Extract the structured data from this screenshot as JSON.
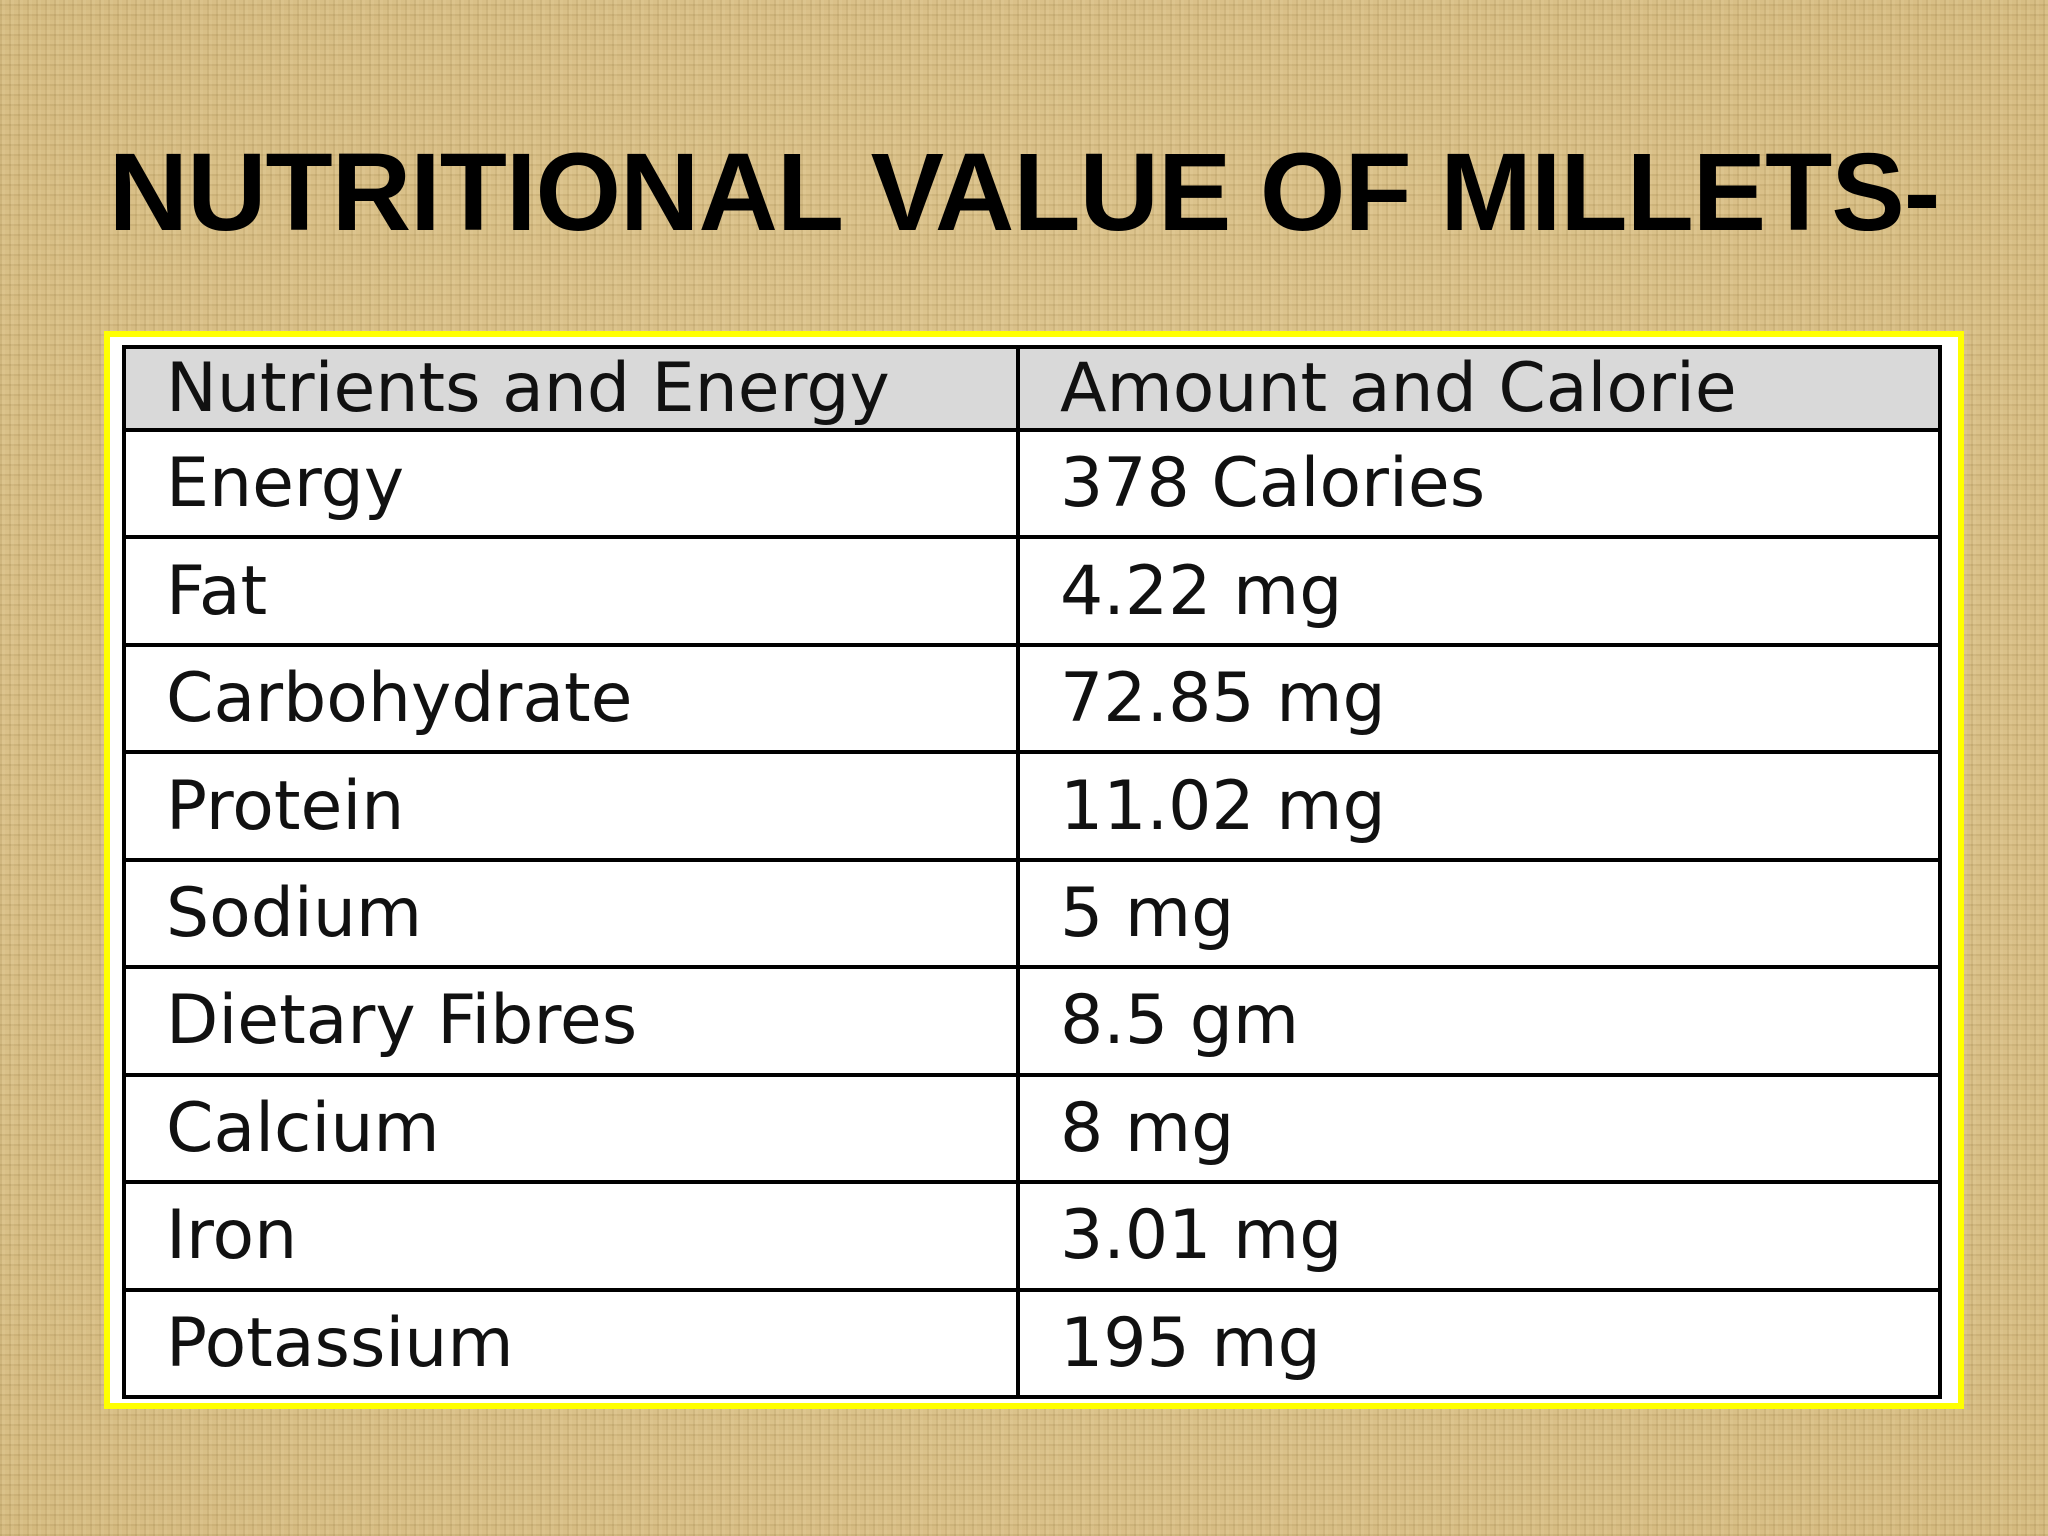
{
  "slide": {
    "title": "NUTRITIONAL VALUE OF MILLETS-"
  },
  "table": {
    "headers": [
      "Nutrients and Energy",
      "Amount and Calorie"
    ],
    "rows": [
      [
        "Energy",
        "378 Calories"
      ],
      [
        "Fat",
        "4.22 mg"
      ],
      [
        "Carbohydrate",
        "72.85 mg"
      ],
      [
        "Protein",
        "11.02 mg"
      ],
      [
        "Sodium",
        "5 mg"
      ],
      [
        "Dietary Fibres",
        "8.5 gm"
      ],
      [
        "Calcium",
        "8 mg"
      ],
      [
        "Iron",
        "3.01 mg"
      ],
      [
        "Potassium",
        "195 mg"
      ]
    ]
  },
  "colors": {
    "background": "#d9c08a",
    "table_border_highlight": "#ffff00",
    "header_fill": "#d9d9d9",
    "grid_lines": "#000000"
  }
}
